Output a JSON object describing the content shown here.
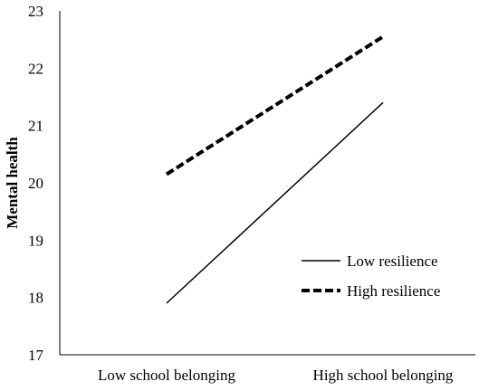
{
  "chart_data": {
    "type": "line",
    "title": "",
    "xlabel": "",
    "ylabel": "Mental health",
    "categories": [
      "Low school belonging",
      "High school belonging"
    ],
    "ylim": [
      17,
      23
    ],
    "yticks": [
      "17",
      "18",
      "19",
      "20",
      "21",
      "22",
      "23"
    ],
    "grid": false,
    "legend_position": "lower-right",
    "series": [
      {
        "name": "Low resilience",
        "values": [
          17.9,
          21.4
        ],
        "line_style": "solid",
        "color": "#000000"
      },
      {
        "name": "High resilience",
        "values": [
          20.15,
          22.55
        ],
        "line_style": "dashed",
        "color": "#000000"
      }
    ]
  }
}
